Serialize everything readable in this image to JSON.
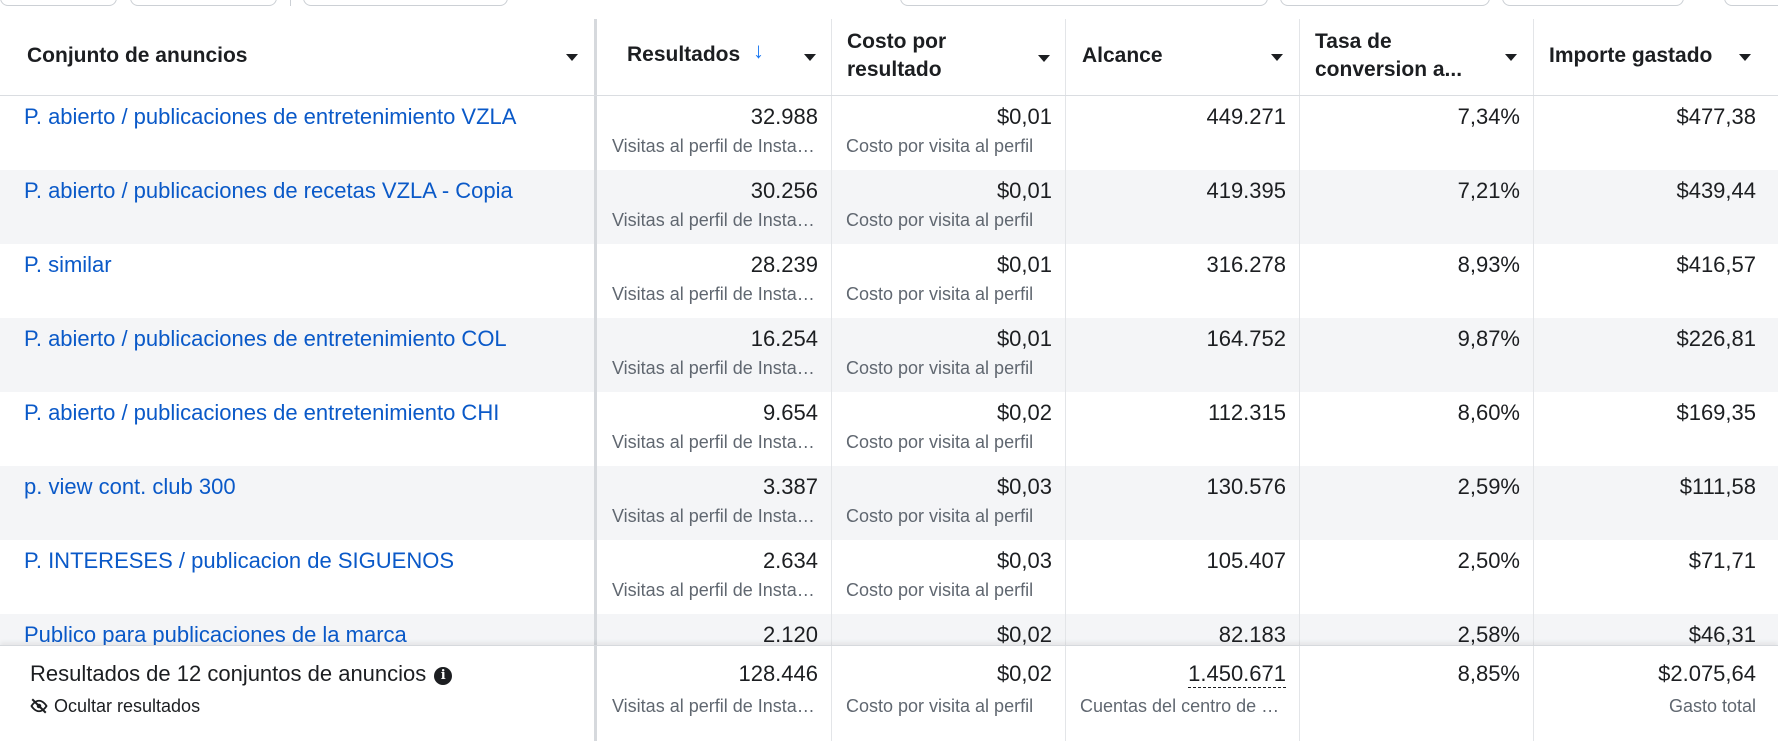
{
  "table": {
    "headers": {
      "adset": "Conjunto de anuncios",
      "results": "Resultados",
      "cost_line1": "Costo por",
      "cost_line2": "resultado",
      "reach": "Alcance",
      "conv_line1": "Tasa de",
      "conv_line2": "conversion a...",
      "spent": "Importe gastado"
    },
    "rows": [
      {
        "name": "P. abierto / publicaciones de entretenimiento VZLA",
        "results": "32.988",
        "results_sub": "Visitas al perfil de Instagram",
        "cost": "$0,01",
        "cost_sub": "Costo por visita al perfil",
        "reach": "449.271",
        "conv": "7,34%",
        "spent": "$477,38"
      },
      {
        "name": "P. abierto / publicaciones de recetas VZLA - Copia",
        "results": "30.256",
        "results_sub": "Visitas al perfil de Instagram",
        "cost": "$0,01",
        "cost_sub": "Costo por visita al perfil",
        "reach": "419.395",
        "conv": "7,21%",
        "spent": "$439,44"
      },
      {
        "name": "P. similar",
        "results": "28.239",
        "results_sub": "Visitas al perfil de Instagram",
        "cost": "$0,01",
        "cost_sub": "Costo por visita al perfil",
        "reach": "316.278",
        "conv": "8,93%",
        "spent": "$416,57"
      },
      {
        "name": "P. abierto / publicaciones de entretenimiento COL",
        "results": "16.254",
        "results_sub": "Visitas al perfil de Instagram",
        "cost": "$0,01",
        "cost_sub": "Costo por visita al perfil",
        "reach": "164.752",
        "conv": "9,87%",
        "spent": "$226,81"
      },
      {
        "name": "P. abierto / publicaciones de entretenimiento CHI",
        "results": "9.654",
        "results_sub": "Visitas al perfil de Instagram",
        "cost": "$0,02",
        "cost_sub": "Costo por visita al perfil",
        "reach": "112.315",
        "conv": "8,60%",
        "spent": "$169,35"
      },
      {
        "name": "p. view cont. club 300",
        "results": "3.387",
        "results_sub": "Visitas al perfil de Instagram",
        "cost": "$0,03",
        "cost_sub": "Costo por visita al perfil",
        "reach": "130.576",
        "conv": "2,59%",
        "spent": "$111,58"
      },
      {
        "name": "P. INTERESES / publicacion de SIGUENOS",
        "results": "2.634",
        "results_sub": "Visitas al perfil de Instagram",
        "cost": "$0,03",
        "cost_sub": "Costo por visita al perfil",
        "reach": "105.407",
        "conv": "2,50%",
        "spent": "$71,71"
      },
      {
        "name": "Publico para publicaciones de la marca",
        "results": "2.120",
        "results_sub": "Visitas al perfil de Instagram",
        "cost": "$0,02",
        "cost_sub": "Costo por visita al perfil",
        "reach": "82.183",
        "conv": "2,58%",
        "spent": "$46,31"
      }
    ],
    "footer": {
      "title": "Resultados de 12 conjuntos de anuncios",
      "hide_label": "Ocultar resultados",
      "results": "128.446",
      "results_sub": "Visitas al perfil de Instagram",
      "cost": "$0,02",
      "cost_sub": "Costo por visita al perfil",
      "reach": "1.450.671",
      "reach_sub": "Cuentas del centro de cuentas",
      "conv": "8,85%",
      "spent": "$2.075,64",
      "spent_sub": "Gasto total"
    }
  },
  "colors": {
    "link": "#0a59c8",
    "sort_accent": "#1877f2",
    "row_alt": "#f4f5f7"
  }
}
